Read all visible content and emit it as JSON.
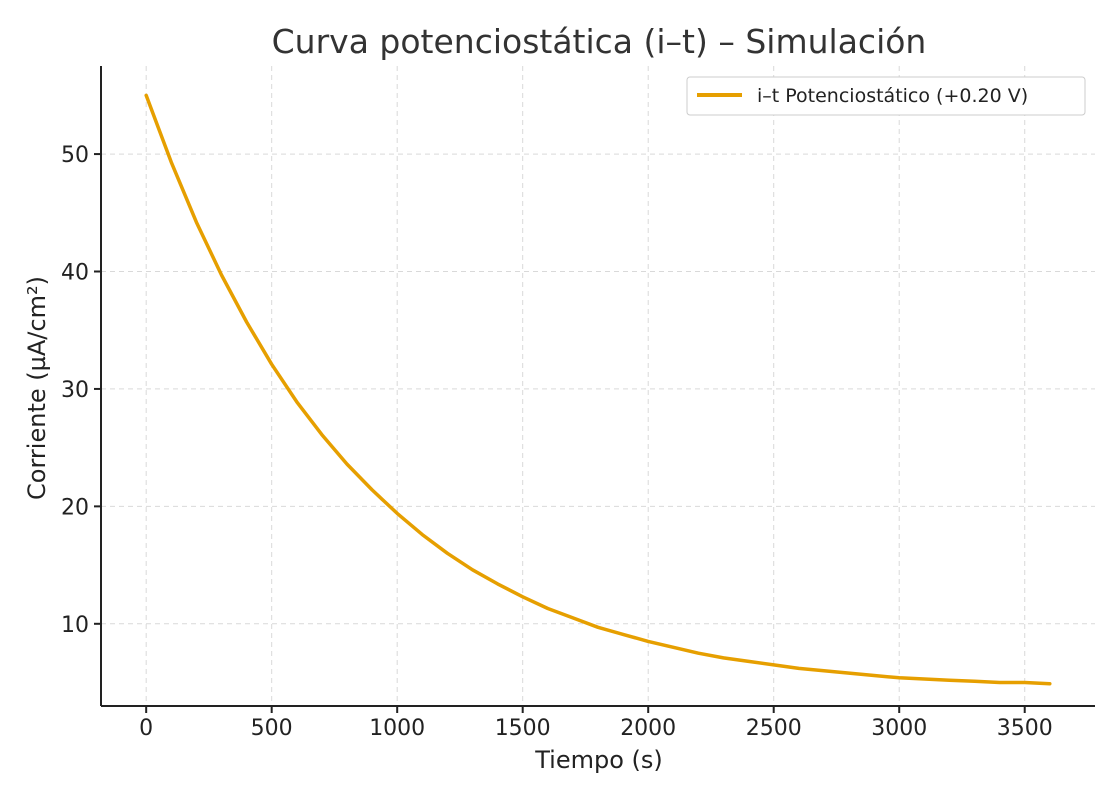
{
  "chart_data": {
    "type": "line",
    "title": "Curva potenciostática (i–t) – Simulación",
    "xlabel": "Tiempo (s)",
    "ylabel": "Corriente (µA/cm²)",
    "xlim": [
      -180,
      3780
    ],
    "ylim": [
      3,
      57.5
    ],
    "xticks": [
      0,
      500,
      1000,
      1500,
      2000,
      2500,
      3000,
      3500
    ],
    "yticks": [
      10,
      20,
      30,
      40,
      50
    ],
    "grid": true,
    "legend_position": "top-right",
    "series": [
      {
        "name": "i–t Potenciostático (+0.20 V)",
        "color": "#E69F00",
        "x": [
          0,
          100,
          200,
          300,
          400,
          500,
          600,
          700,
          800,
          900,
          1000,
          1100,
          1200,
          1300,
          1400,
          1500,
          1600,
          1700,
          1800,
          1900,
          2000,
          2100,
          2200,
          2300,
          2400,
          2500,
          2600,
          2700,
          2800,
          2900,
          3000,
          3100,
          3200,
          3300,
          3400,
          3500,
          3600
        ],
        "y": [
          55.0,
          49.3,
          44.2,
          39.7,
          35.7,
          32.1,
          28.9,
          26.1,
          23.6,
          21.4,
          19.4,
          17.6,
          16.0,
          14.6,
          13.4,
          12.3,
          11.3,
          10.5,
          9.7,
          9.1,
          8.5,
          8.0,
          7.5,
          7.1,
          6.8,
          6.5,
          6.2,
          6.0,
          5.8,
          5.6,
          5.4,
          5.3,
          5.2,
          5.1,
          5.0,
          5.0,
          4.9
        ]
      }
    ]
  }
}
